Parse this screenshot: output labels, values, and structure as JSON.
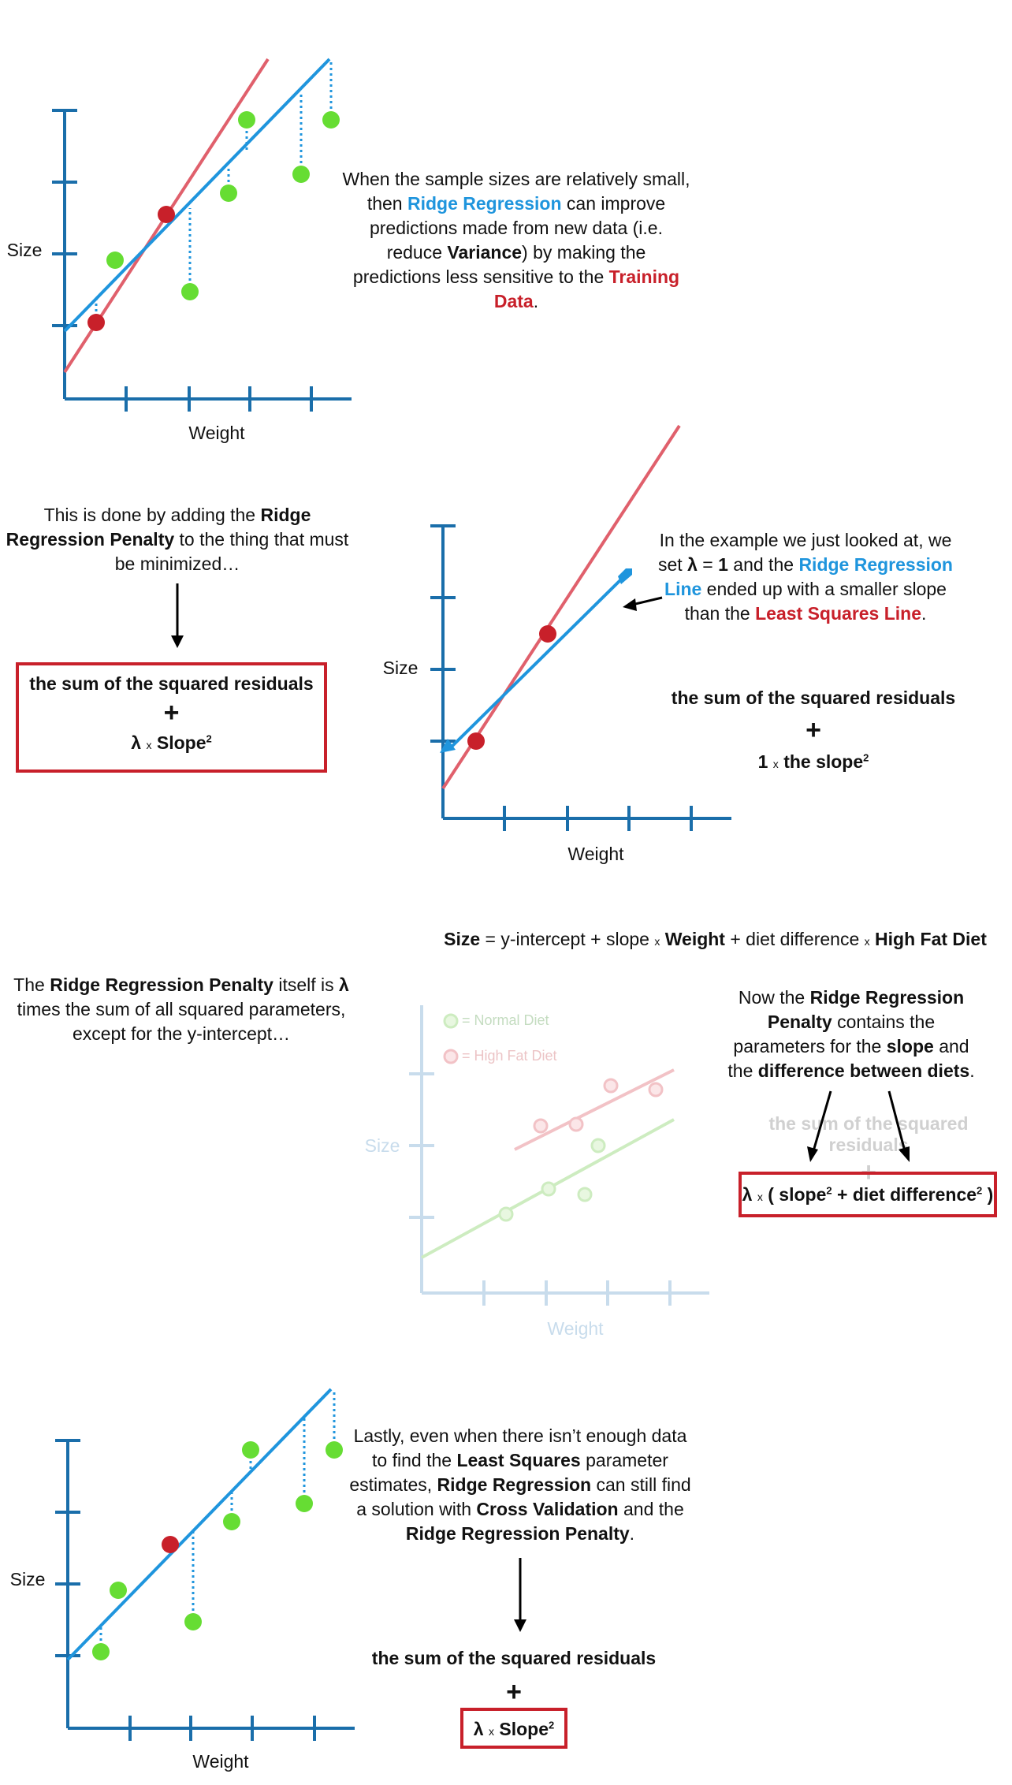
{
  "panel1": {
    "y_label": "Size",
    "x_label": "Weight",
    "text": {
      "t1": "When the sample sizes are relatively small,",
      "t2a": "then ",
      "t2b": "Ridge Regression",
      "t2c": " can improve",
      "t3": "predictions made from new data (i.e.",
      "t4a": "reduce ",
      "t4b": "Variance",
      "t4c": ") by making the",
      "t5a": "predictions less sensitive to the ",
      "t5b": "Training",
      "t6a": "Data",
      "t6b": "."
    }
  },
  "panel2": {
    "left_text": {
      "l1a": "This is done by adding the ",
      "l1b": "Ridge",
      "l2a": "Regression Penalty",
      "l2b": " to the thing that must",
      "l3": "be minimized…"
    },
    "equation": {
      "line1": "the sum of the squared residuals",
      "plus": "+",
      "lambda": "λ",
      "times": "x",
      "term": "Slope",
      "exp": "2"
    },
    "y_label": "Size",
    "x_label": "Weight",
    "right_text": {
      "r1": "In the example we just looked at, we",
      "r2a": "set ",
      "r2b": "λ",
      "r2c": " = ",
      "r2d": "1",
      "r2e": " and the ",
      "r2f": "Ridge Regression",
      "r3a": "Line",
      "r3b": " ended up with a smaller slope",
      "r4a": "than the ",
      "r4b": "Least Squares Line",
      "r4c": "."
    },
    "equation2": {
      "line1": "the sum of the squared residuals",
      "plus": "+",
      "one": "1",
      "times": "x",
      "term": "the slope",
      "exp": "2"
    }
  },
  "panel3": {
    "formula": {
      "size": "Size",
      "p1": " = y-intercept + slope ",
      "x1": "x",
      "weight": " Weight",
      "p2": " + diet difference ",
      "x2": "x",
      "hfd": " High Fat Diet"
    },
    "left_text": {
      "l1a": "The ",
      "l1b": "Ridge Regression Penalty",
      "l1c": " itself is ",
      "l1d": "λ",
      "l2": "times the sum of all squared parameters,",
      "l3": "except for the y-intercept…"
    },
    "legend": {
      "normal": "= Normal Diet",
      "high": "= High Fat Diet"
    },
    "y_label": "Size",
    "x_label": "Weight",
    "right_text": {
      "r1a": "Now the ",
      "r1b": "Ridge Regression",
      "r2a": "Penalty",
      "r2b": " contains the",
      "r3a": "parameters for the ",
      "r3b": "slope",
      "r3c": " and",
      "r4a": "the ",
      "r4b": "difference between diets",
      "r4c": "."
    },
    "faded_equation": {
      "line1": "the sum of the squared residuals",
      "plus": "+"
    },
    "box": {
      "lambda": "λ",
      "times": "x",
      "open": " ( slope",
      "exp1": "2",
      "mid": " + diet difference",
      "exp2": "2",
      "close": " )"
    }
  },
  "panel4": {
    "y_label": "Size",
    "x_label": "Weight",
    "text": {
      "t1": "Lastly, even when there isn’t enough data",
      "t2a": "to find the ",
      "t2b": "Least Squares",
      "t2c": " parameter",
      "t3a": "estimates, ",
      "t3b": "Ridge Regression",
      "t3c": " can still find",
      "t4a": "a solution with ",
      "t4b": "Cross Validation",
      "t4c": " and the",
      "t5a": "Ridge Regression Penalty",
      "t5b": "."
    },
    "equation": {
      "line1": "the sum of the squared residuals",
      "plus": "+",
      "lambda": "λ",
      "times": "x",
      "term": "Slope",
      "exp": "2"
    }
  },
  "colors": {
    "axis": "#1a6eaa",
    "blue": "#1f95dd",
    "red": "#c8202a",
    "red_line": "#e0606c",
    "green": "#66dd33",
    "faded": "#c8dcec"
  }
}
